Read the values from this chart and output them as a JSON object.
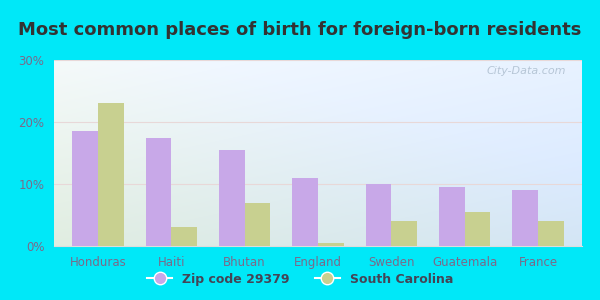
{
  "title": "Most common places of birth for foreign-born residents",
  "categories": [
    "Honduras",
    "Haiti",
    "Bhutan",
    "England",
    "Sweden",
    "Guatemala",
    "France"
  ],
  "zip_values": [
    18.5,
    17.5,
    15.5,
    11.0,
    10.0,
    9.5,
    9.0
  ],
  "sc_values": [
    23.0,
    3.0,
    7.0,
    0.5,
    4.0,
    5.5,
    4.0
  ],
  "zip_color": "#c8a8e8",
  "sc_color": "#c8d090",
  "ylim": [
    0,
    30
  ],
  "yticks": [
    0,
    10,
    20,
    30
  ],
  "legend_zip": "Zip code 29379",
  "legend_sc": "South Carolina",
  "watermark": "City-Data.com",
  "bar_width": 0.35,
  "title_fontsize": 13,
  "tick_fontsize": 8.5,
  "legend_fontsize": 9,
  "outer_bg": "#00e8f8",
  "label_color": "#7a6a8a"
}
